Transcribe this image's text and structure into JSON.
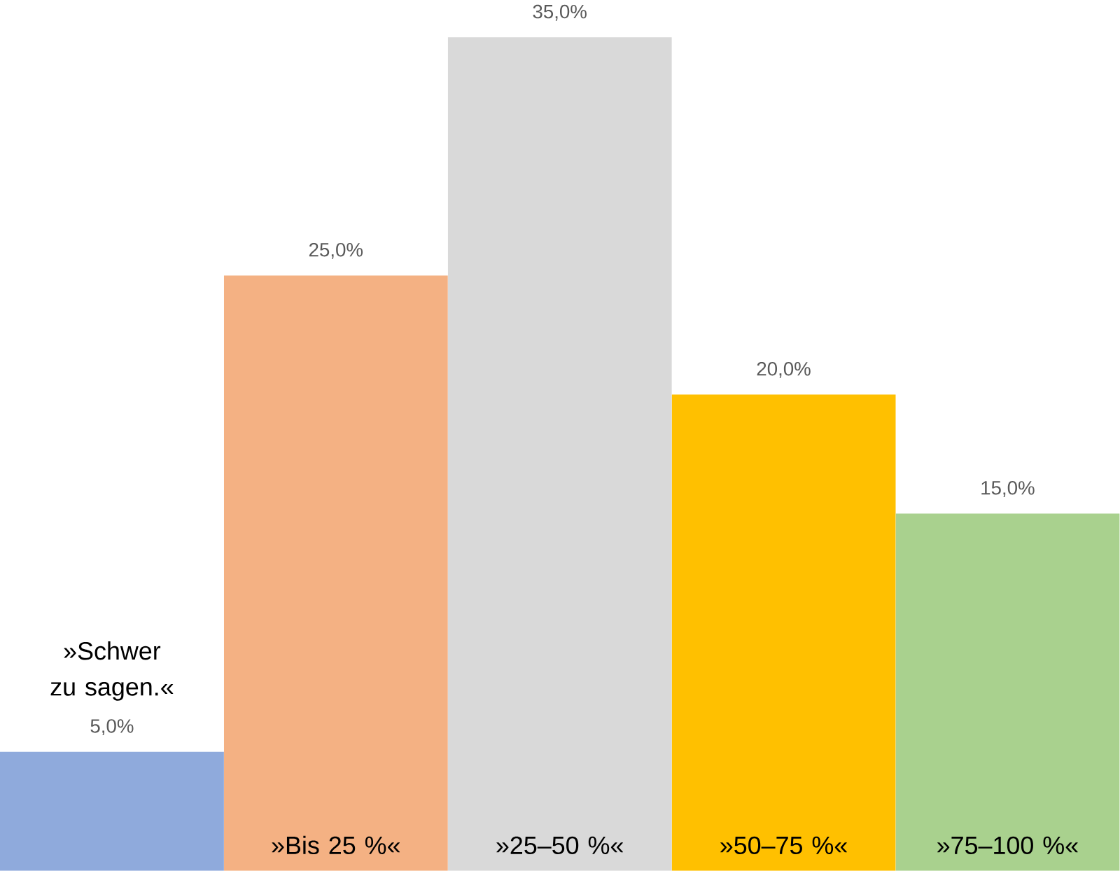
{
  "chart_data": {
    "type": "bar",
    "categories": [
      "»Schwer zu sagen.«",
      "»Bis 25 %«",
      "»25–50 %«",
      "»50–75 %«",
      "»75–100 %«"
    ],
    "values": [
      5,
      25,
      35,
      20,
      15
    ],
    "colors": [
      "#8faadc",
      "#f4b183",
      "#d9d9d9",
      "#ffc000",
      "#a9d18e"
    ],
    "value_labels": [
      "5,0%",
      "25,0%",
      "35,0%",
      "20,0%",
      "15,0%"
    ]
  }
}
